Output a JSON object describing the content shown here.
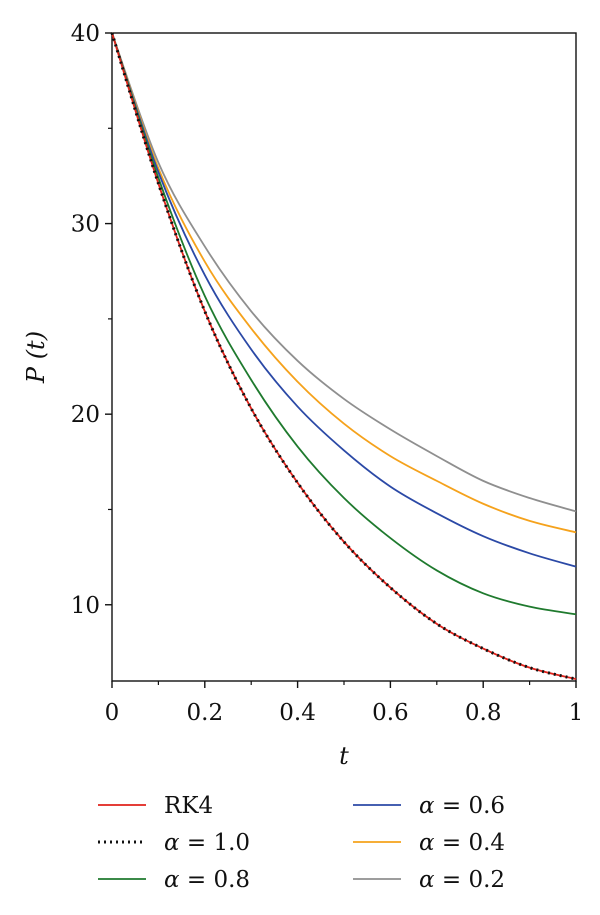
{
  "chart_data": {
    "type": "line",
    "xlabel": "t",
    "ylabel": "P (t)",
    "xlim": [
      0,
      1
    ],
    "ylim": [
      6,
      40
    ],
    "x_ticks": [
      "0",
      "0.2",
      "0.4",
      "0.6",
      "0.8",
      "1"
    ],
    "x_tick_values": [
      0,
      0.2,
      0.4,
      0.6,
      0.8,
      1
    ],
    "y_ticks": [
      "10",
      "20",
      "30",
      "40"
    ],
    "y_tick_values": [
      10,
      20,
      30,
      40
    ],
    "grid": false,
    "legend_position": "bottom",
    "x": [
      0,
      0.1,
      0.2,
      0.3,
      0.4,
      0.5,
      0.6,
      0.7,
      0.8,
      0.9,
      1.0
    ],
    "series": [
      {
        "name": "RK4",
        "color": "#e0231b",
        "style": "solid",
        "values": [
          40,
          32.1,
          25.4,
          20.3,
          16.4,
          13.3,
          10.9,
          9.0,
          7.7,
          6.7,
          6.1
        ]
      },
      {
        "name": "α = 1.0",
        "color": "#111111",
        "style": "dotted",
        "values": [
          40,
          32.1,
          25.4,
          20.3,
          16.4,
          13.3,
          10.9,
          9.0,
          7.7,
          6.7,
          6.1
        ]
      },
      {
        "name": "α = 0.8",
        "color": "#1f7a2e",
        "style": "solid",
        "values": [
          40,
          32.4,
          26.2,
          21.8,
          18.3,
          15.6,
          13.5,
          11.8,
          10.6,
          9.9,
          9.5
        ]
      },
      {
        "name": "α = 0.6",
        "color": "#2b49a6",
        "style": "solid",
        "values": [
          40,
          32.7,
          27.3,
          23.4,
          20.4,
          18.1,
          16.2,
          14.8,
          13.6,
          12.7,
          12.0
        ]
      },
      {
        "name": "α = 0.4",
        "color": "#f5a21c",
        "style": "solid",
        "values": [
          40,
          32.9,
          28.0,
          24.5,
          21.7,
          19.5,
          17.8,
          16.5,
          15.3,
          14.4,
          13.8
        ]
      },
      {
        "name": "α = 0.2",
        "color": "#8f8f8f",
        "style": "solid",
        "values": [
          40,
          33.2,
          28.8,
          25.4,
          22.8,
          20.8,
          19.2,
          17.8,
          16.5,
          15.6,
          14.9
        ]
      }
    ],
    "legend": {
      "columns": [
        [
          "RK4",
          "α = 1.0",
          "α = 0.8"
        ],
        [
          "α = 0.6",
          "α = 0.4",
          "α = 0.2"
        ]
      ]
    }
  }
}
